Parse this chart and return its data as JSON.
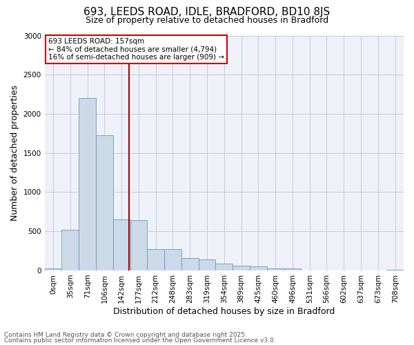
{
  "title": "693, LEEDS ROAD, IDLE, BRADFORD, BD10 8JS",
  "subtitle": "Size of property relative to detached houses in Bradford",
  "xlabel": "Distribution of detached houses by size in Bradford",
  "ylabel": "Number of detached properties",
  "bar_categories": [
    "0sqm",
    "35sqm",
    "71sqm",
    "106sqm",
    "142sqm",
    "177sqm",
    "212sqm",
    "248sqm",
    "283sqm",
    "319sqm",
    "354sqm",
    "389sqm",
    "425sqm",
    "460sqm",
    "496sqm",
    "531sqm",
    "566sqm",
    "602sqm",
    "637sqm",
    "673sqm",
    "708sqm"
  ],
  "bar_values": [
    30,
    520,
    2200,
    1730,
    650,
    640,
    270,
    270,
    155,
    140,
    90,
    60,
    55,
    30,
    30,
    0,
    0,
    0,
    0,
    0,
    10
  ],
  "bar_color": "#ccd9e8",
  "bar_edge_color": "#6699bb",
  "ylim": [
    0,
    3000
  ],
  "yticks": [
    0,
    500,
    1000,
    1500,
    2000,
    2500,
    3000
  ],
  "annotation_text": "693 LEEDS ROAD: 157sqm\n← 84% of detached houses are smaller (4,794)\n16% of semi-detached houses are larger (909) →",
  "annotation_box_color": "#ffffff",
  "annotation_box_edge_color": "#cc0000",
  "vline_color": "#aa0000",
  "footer_line1": "Contains HM Land Registry data © Crown copyright and database right 2025.",
  "footer_line2": "Contains public sector information licensed under the Open Government Licence v3.0.",
  "grid_color": "#c8c8d8",
  "background_color": "#eef2f8",
  "title_fontsize": 11,
  "subtitle_fontsize": 9,
  "axis_label_fontsize": 9,
  "tick_fontsize": 7.5,
  "annotation_fontsize": 7.5,
  "footer_fontsize": 6.5
}
